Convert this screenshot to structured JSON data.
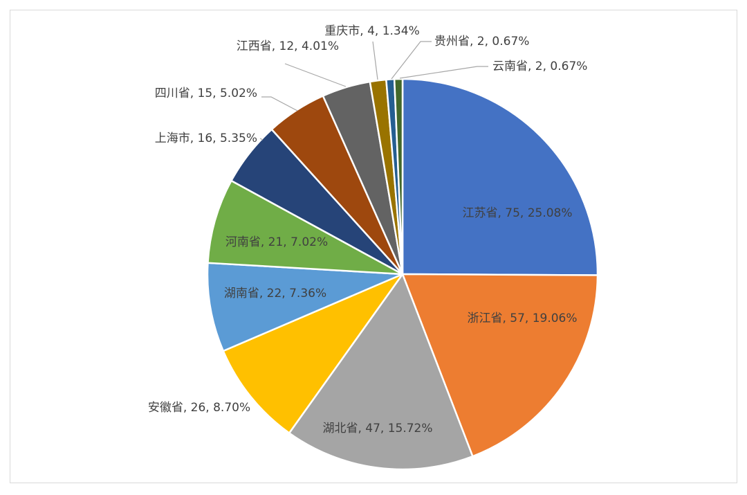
{
  "chart_data": {
    "type": "pie",
    "title": "",
    "slices": [
      {
        "name": "江苏省",
        "value": 75,
        "percent": "25.08%",
        "color": "#4472C4",
        "label": "江苏省, 75, 25.08%"
      },
      {
        "name": "浙江省",
        "value": 57,
        "percent": "19.06%",
        "color": "#ED7D31",
        "label": "浙江省, 57, 19.06%"
      },
      {
        "name": "湖北省",
        "value": 47,
        "percent": "15.72%",
        "color": "#A5A5A5",
        "label": "湖北省, 47, 15.72%"
      },
      {
        "name": "安徽省",
        "value": 26,
        "percent": "8.70%",
        "color": "#FFC000",
        "label": "安徽省, 26, 8.70%"
      },
      {
        "name": "湖南省",
        "value": 22,
        "percent": "7.36%",
        "color": "#5B9BD5",
        "label": "湖南省, 22, 7.36%"
      },
      {
        "name": "河南省",
        "value": 21,
        "percent": "7.02%",
        "color": "#70AD47",
        "label": "河南省, 21, 7.02%"
      },
      {
        "name": "上海市",
        "value": 16,
        "percent": "5.35%",
        "color": "#264478",
        "label": "上海市, 16, 5.35%"
      },
      {
        "name": "四川省",
        "value": 15,
        "percent": "5.02%",
        "color": "#9E480E",
        "label": "四川省, 15, 5.02%"
      },
      {
        "name": "江西省",
        "value": 12,
        "percent": "4.01%",
        "color": "#636363",
        "label": "江西省, 12, 4.01%"
      },
      {
        "name": "重庆市",
        "value": 4,
        "percent": "1.34%",
        "color": "#997300",
        "label": "重庆市, 4, 1.34%"
      },
      {
        "name": "贵州省",
        "value": 2,
        "percent": "0.67%",
        "color": "#255E91",
        "label": "贵州省, 2, 0.67%"
      },
      {
        "name": "云南省",
        "value": 2,
        "percent": "0.67%",
        "color": "#43682B",
        "label": "云南省, 2, 0.67%"
      }
    ],
    "legend": "none",
    "start_angle_deg": 0,
    "direction": "clockwise"
  }
}
